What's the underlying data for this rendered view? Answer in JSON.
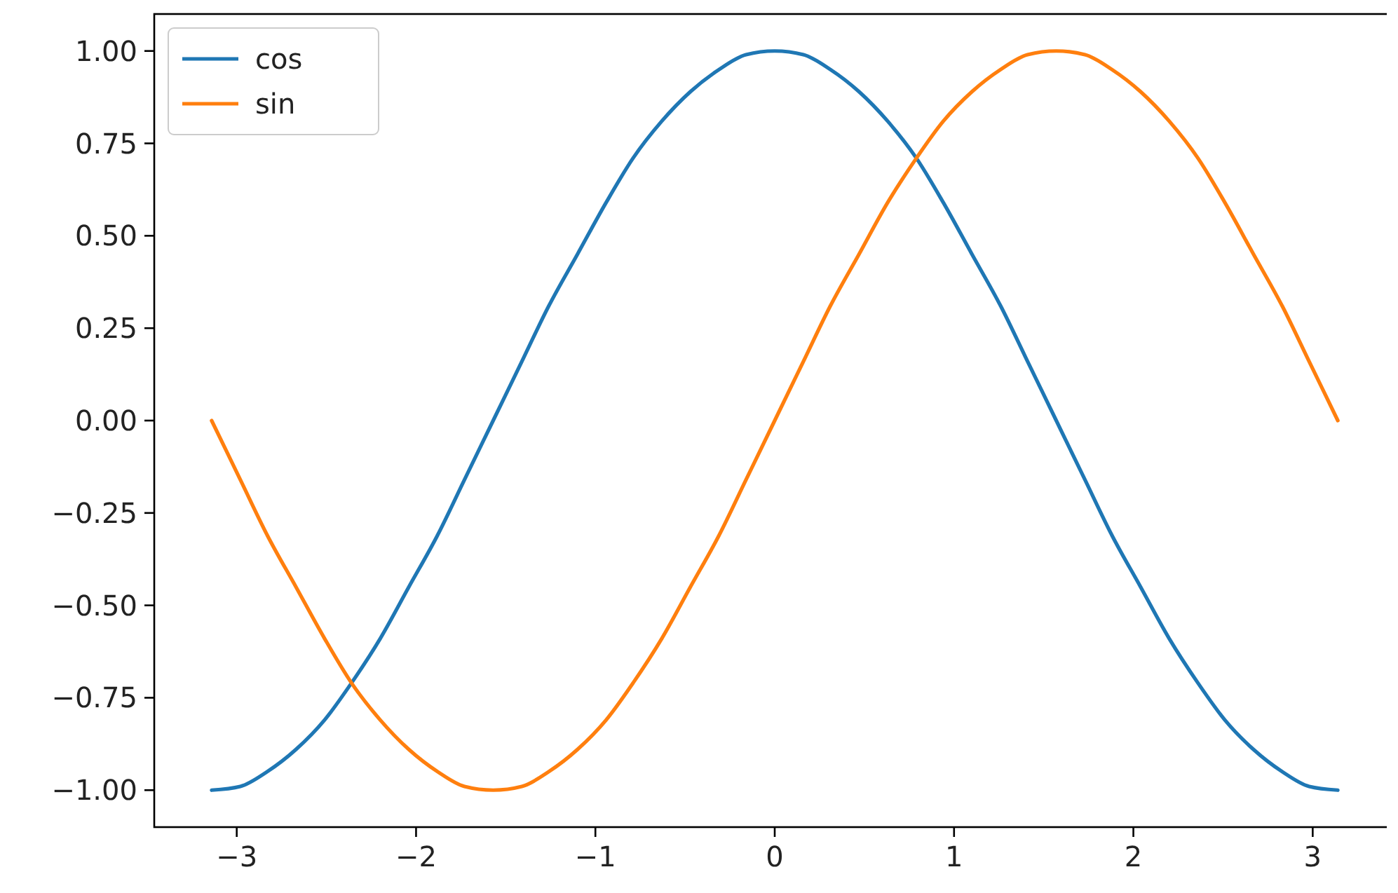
{
  "chart_data": {
    "type": "line",
    "x": [
      -3.14,
      -2.98,
      -2.83,
      -2.67,
      -2.51,
      -2.36,
      -2.2,
      -2.04,
      -1.88,
      -1.73,
      -1.57,
      -1.41,
      -1.26,
      -1.1,
      -0.94,
      -0.79,
      -0.63,
      -0.47,
      -0.31,
      -0.16,
      0,
      0.16,
      0.31,
      0.47,
      0.63,
      0.79,
      0.94,
      1.1,
      1.26,
      1.41,
      1.57,
      1.73,
      1.88,
      2.04,
      2.2,
      2.36,
      2.51,
      2.67,
      2.83,
      2.98,
      3.14
    ],
    "series": [
      {
        "name": "cos",
        "color": "#1f77b4",
        "values": [
          -1,
          -0.99,
          -0.95,
          -0.89,
          -0.81,
          -0.71,
          -0.59,
          -0.45,
          -0.31,
          -0.16,
          0,
          0.16,
          0.31,
          0.45,
          0.59,
          0.71,
          0.81,
          0.89,
          0.95,
          0.99,
          1,
          0.99,
          0.95,
          0.89,
          0.81,
          0.71,
          0.59,
          0.45,
          0.31,
          0.16,
          0,
          -0.16,
          -0.31,
          -0.45,
          -0.59,
          -0.71,
          -0.81,
          -0.89,
          -0.95,
          -0.99,
          -1
        ]
      },
      {
        "name": "sin",
        "color": "#ff7f0e",
        "values": [
          0,
          -0.16,
          -0.31,
          -0.45,
          -0.59,
          -0.71,
          -0.81,
          -0.89,
          -0.95,
          -0.99,
          -1,
          -0.99,
          -0.95,
          -0.89,
          -0.81,
          -0.71,
          -0.59,
          -0.45,
          -0.31,
          -0.16,
          0,
          0.16,
          0.31,
          0.45,
          0.59,
          0.71,
          0.81,
          0.89,
          0.95,
          0.99,
          1,
          0.99,
          0.95,
          0.89,
          0.81,
          0.71,
          0.59,
          0.45,
          0.31,
          0.16,
          0
        ]
      }
    ],
    "xlim": [
      -3.46,
      3.46
    ],
    "ylim": [
      -1.1,
      1.1
    ],
    "xticks": [
      {
        "value": -3,
        "label": "−3"
      },
      {
        "value": -2,
        "label": "−2"
      },
      {
        "value": -1,
        "label": "−1"
      },
      0,
      1,
      2,
      3
    ],
    "yticks": [
      {
        "value": -1,
        "label": "−1.00"
      },
      {
        "value": -0.75,
        "label": "−0.75"
      },
      {
        "value": -0.5,
        "label": "−0.50"
      },
      {
        "value": -0.25,
        "label": "−0.25"
      },
      {
        "value": 0,
        "label": "0.00"
      },
      {
        "value": 0.25,
        "label": "0.25"
      },
      {
        "value": 0.5,
        "label": "0.50"
      },
      {
        "value": 0.75,
        "label": "0.75"
      },
      {
        "value": 1,
        "label": "1.00"
      }
    ],
    "legend": "top left",
    "grid": false,
    "marker": "none",
    "line_style": "solid"
  }
}
